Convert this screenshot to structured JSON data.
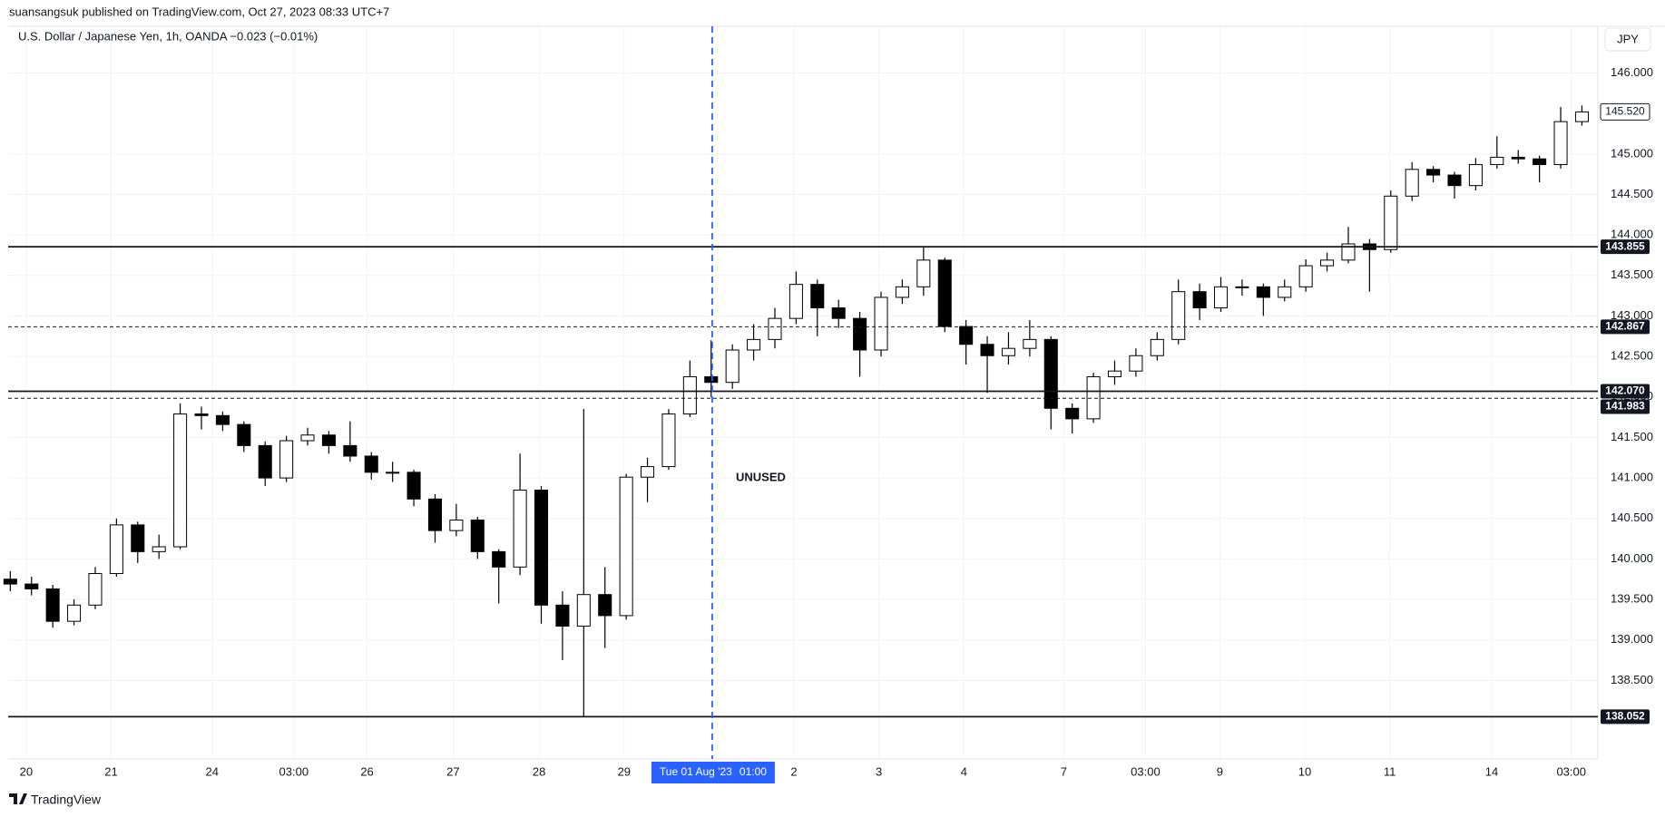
{
  "header": "suansangsuk published on TradingView.com, Oct 27, 2023 08:33 UTC+7",
  "footer": "TradingView",
  "chart_data": {
    "type": "candlestick",
    "symbol": "U.S. Dollar / Japanese Yen, 1h, OANDA  −0.023 (−0.01%)",
    "currency": "JPY",
    "annotation": "UNUSED",
    "up_color": "#ffffff",
    "down_color": "#000000",
    "outline_color": "#000000",
    "xlim": [
      -0.1,
      74.75
    ],
    "ylim": [
      137.53,
      146.577
    ],
    "grid": true,
    "yticks": [
      {
        "value": 138.5,
        "label": "138.500"
      },
      {
        "value": 139,
        "label": "139.000"
      },
      {
        "value": 139.5,
        "label": "139.500"
      },
      {
        "value": 140,
        "label": "140.000"
      },
      {
        "value": 140.5,
        "label": "140.500"
      },
      {
        "value": 141,
        "label": "141.000"
      },
      {
        "value": 141.5,
        "label": "141.500"
      },
      {
        "value": 142,
        "label": "142.000"
      },
      {
        "value": 142.5,
        "label": "142.500"
      },
      {
        "value": 143,
        "label": "143.000"
      },
      {
        "value": 143.5,
        "label": "143.500"
      },
      {
        "value": 144,
        "label": "144.000"
      },
      {
        "value": 144.5,
        "label": "144.500"
      },
      {
        "value": 145,
        "label": "145.000"
      },
      {
        "value": 146,
        "label": "146.000"
      }
    ],
    "xticks": [
      {
        "value": 0.75,
        "label": "20"
      },
      {
        "value": 4.75,
        "label": "21"
      },
      {
        "value": 9.5,
        "label": "24"
      },
      {
        "value": 13.35,
        "label": "03:00"
      },
      {
        "value": 16.8,
        "label": "26"
      },
      {
        "value": 20.85,
        "label": "27"
      },
      {
        "value": 24.9,
        "label": "28"
      },
      {
        "value": 28.9,
        "label": "29"
      },
      {
        "value": 36.9,
        "label": "2"
      },
      {
        "value": 40.9,
        "label": "3"
      },
      {
        "value": 44.9,
        "label": "4"
      },
      {
        "value": 49.6,
        "label": "7"
      },
      {
        "value": 53.45,
        "label": "03:00"
      },
      {
        "value": 56.95,
        "label": "9"
      },
      {
        "value": 60.95,
        "label": "10"
      },
      {
        "value": 64.95,
        "label": "11"
      },
      {
        "value": 69.75,
        "label": "14"
      },
      {
        "value": 73.5,
        "label": "03:00"
      }
    ],
    "highlight": {
      "value": 33.05,
      "date": "Tue 01 Aug '23",
      "time": "01:00",
      "color": "#2962ff"
    },
    "levels": [
      {
        "value": 143.855,
        "label": "143.855",
        "style": "solid"
      },
      {
        "value": 142.867,
        "label": "142.867",
        "style": "dashed"
      },
      {
        "value": 142.07,
        "label": "142.070",
        "style": "solid"
      },
      {
        "value": 141.983,
        "label": "141.983",
        "style": "dashed"
      },
      {
        "value": 138.052,
        "label": "138.052",
        "style": "solid"
      }
    ],
    "last_price": {
      "value": 145.52,
      "label": "145.520"
    },
    "candles": [
      [
        139.75,
        139.85,
        139.6,
        139.69
      ],
      [
        139.69,
        139.78,
        139.55,
        139.63
      ],
      [
        139.63,
        139.68,
        139.15,
        139.23
      ],
      [
        139.23,
        139.5,
        139.18,
        139.43
      ],
      [
        139.43,
        139.9,
        139.38,
        139.82
      ],
      [
        139.82,
        140.5,
        139.78,
        140.42
      ],
      [
        140.42,
        140.46,
        139.95,
        140.09
      ],
      [
        140.09,
        140.3,
        140.0,
        140.15
      ],
      [
        140.15,
        141.92,
        140.12,
        141.79
      ],
      [
        141.79,
        141.88,
        141.6,
        141.77
      ],
      [
        141.77,
        141.82,
        141.58,
        141.66
      ],
      [
        141.66,
        141.7,
        141.32,
        141.4
      ],
      [
        141.4,
        141.45,
        140.9,
        141.0
      ],
      [
        141.0,
        141.52,
        140.95,
        141.46
      ],
      [
        141.46,
        141.62,
        141.4,
        141.53
      ],
      [
        141.53,
        141.58,
        141.3,
        141.4
      ],
      [
        141.4,
        141.7,
        141.2,
        141.27
      ],
      [
        141.27,
        141.32,
        140.98,
        141.07
      ],
      [
        141.07,
        141.2,
        140.95,
        141.07
      ],
      [
        141.07,
        141.1,
        140.65,
        140.74
      ],
      [
        140.74,
        140.8,
        140.2,
        140.35
      ],
      [
        140.35,
        140.68,
        140.28,
        140.48
      ],
      [
        140.48,
        140.52,
        140.0,
        140.09
      ],
      [
        140.09,
        140.12,
        139.45,
        139.9
      ],
      [
        139.9,
        141.3,
        139.8,
        140.85
      ],
      [
        140.85,
        140.9,
        139.2,
        139.43
      ],
      [
        139.43,
        139.6,
        138.75,
        139.17
      ],
      [
        139.17,
        141.85,
        138.05,
        139.56
      ],
      [
        139.56,
        139.9,
        138.9,
        139.3
      ],
      [
        139.3,
        141.05,
        139.25,
        141.01
      ],
      [
        141.01,
        141.25,
        140.7,
        141.14
      ],
      [
        141.14,
        141.85,
        141.1,
        141.79
      ],
      [
        141.79,
        142.45,
        141.75,
        142.25
      ],
      [
        142.25,
        142.7,
        142.0,
        142.18
      ],
      [
        142.18,
        142.65,
        142.1,
        142.58
      ],
      [
        142.58,
        142.9,
        142.45,
        142.71
      ],
      [
        142.71,
        143.1,
        142.6,
        142.97
      ],
      [
        142.97,
        143.55,
        142.9,
        143.39
      ],
      [
        143.39,
        143.45,
        142.75,
        143.1
      ],
      [
        143.1,
        143.2,
        142.85,
        142.97
      ],
      [
        142.97,
        143.05,
        142.25,
        142.58
      ],
      [
        142.58,
        143.3,
        142.5,
        143.23
      ],
      [
        143.23,
        143.45,
        143.15,
        143.36
      ],
      [
        143.36,
        143.86,
        143.25,
        143.69
      ],
      [
        143.69,
        143.72,
        142.8,
        142.87
      ],
      [
        142.87,
        142.95,
        142.4,
        142.65
      ],
      [
        142.65,
        142.75,
        142.05,
        142.51
      ],
      [
        142.51,
        142.8,
        142.4,
        142.6
      ],
      [
        142.6,
        142.95,
        142.5,
        142.71
      ],
      [
        142.71,
        142.75,
        141.6,
        141.86
      ],
      [
        141.86,
        141.92,
        141.55,
        141.73
      ],
      [
        141.73,
        142.3,
        141.68,
        142.25
      ],
      [
        142.25,
        142.45,
        142.15,
        142.32
      ],
      [
        142.32,
        142.6,
        142.25,
        142.51
      ],
      [
        142.51,
        142.8,
        142.45,
        142.71
      ],
      [
        142.71,
        143.45,
        142.65,
        143.3
      ],
      [
        143.3,
        143.4,
        142.95,
        143.1
      ],
      [
        143.1,
        143.48,
        143.05,
        143.36
      ],
      [
        143.36,
        143.45,
        143.25,
        143.36
      ],
      [
        143.36,
        143.4,
        143.0,
        143.23
      ],
      [
        143.23,
        143.45,
        143.18,
        143.36
      ],
      [
        143.36,
        143.7,
        143.3,
        143.62
      ],
      [
        143.62,
        143.78,
        143.55,
        143.69
      ],
      [
        143.69,
        144.1,
        143.65,
        143.89
      ],
      [
        143.89,
        143.95,
        143.3,
        143.82
      ],
      [
        143.82,
        144.55,
        143.78,
        144.48
      ],
      [
        144.48,
        144.9,
        144.42,
        144.81
      ],
      [
        144.81,
        144.85,
        144.65,
        144.74
      ],
      [
        144.74,
        144.78,
        144.45,
        144.61
      ],
      [
        144.61,
        144.95,
        144.55,
        144.87
      ],
      [
        144.87,
        145.22,
        144.82,
        144.96
      ],
      [
        144.96,
        145.05,
        144.88,
        144.94
      ],
      [
        144.94,
        144.98,
        144.65,
        144.87
      ],
      [
        144.87,
        145.58,
        144.82,
        145.4
      ],
      [
        145.4,
        145.6,
        145.35,
        145.52
      ]
    ]
  }
}
